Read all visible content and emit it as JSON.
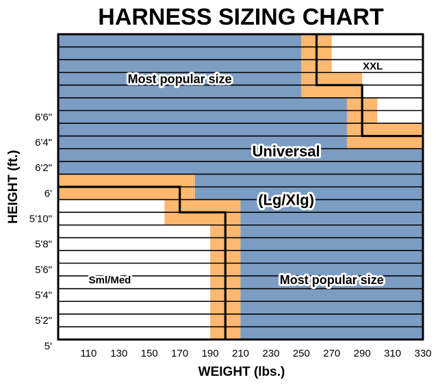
{
  "chart_data": {
    "type": "heatmap",
    "title": "HARNESS SIZING CHART",
    "xlabel": "WEIGHT (lbs.)",
    "ylabel": "HEIGHT (ft.)",
    "x_ticks": [
      "110",
      "130",
      "150",
      "170",
      "190",
      "210",
      "230",
      "250",
      "270",
      "290",
      "310",
      "330"
    ],
    "y_ticks": [
      "6'6\"",
      "6'4\"",
      "6'2\"",
      "6'",
      "5'10\"",
      "5'8\"",
      "5'6\"",
      "5'4\"",
      "5'2\"",
      "5'"
    ],
    "xlim": [
      90,
      330
    ],
    "ylim_inches": [
      59,
      83
    ],
    "row_height_inches": 1,
    "zones": [
      {
        "name": "Sml/Med",
        "color": "#ffffff",
        "rows_from_top": [
          {
            "rows": [
              13,
              14
            ],
            "weight_max": 160
          },
          {
            "rows": [
              15,
              23
            ],
            "weight_max": 190
          }
        ]
      },
      {
        "name": "Universal (Lg/Xlg)",
        "color": "#7b9dc4",
        "rows_from_top": [
          {
            "rows": [
              0,
              2
            ],
            "weight_max": 250
          },
          {
            "rows": [
              3,
              4
            ],
            "weight_max": 250
          },
          {
            "rows": [
              5,
              6
            ],
            "weight_max": 280
          },
          {
            "rows": [
              7,
              8
            ],
            "weight_max": 280
          },
          {
            "rows": [
              9,
              10
            ],
            "weight_max": 330
          },
          {
            "rows": [
              11,
              12
            ],
            "weight_min": 180,
            "weight_max": 330
          },
          {
            "rows": [
              13,
              14
            ],
            "weight_min": 210,
            "weight_max": 330
          },
          {
            "rows": [
              15,
              23
            ],
            "weight_min": 210,
            "weight_max": 330
          }
        ]
      },
      {
        "name": "XXL",
        "color": "#ffffff",
        "rows_from_top": [
          {
            "rows": [
              0,
              2
            ],
            "weight_min": 270
          },
          {
            "rows": [
              3,
              4
            ],
            "weight_min": 290
          },
          {
            "rows": [
              5,
              6
            ],
            "weight_min": 300
          }
        ]
      },
      {
        "name": "overlap",
        "color": "#ffb870",
        "rows_from_top": [
          {
            "rows": [
              0,
              2
            ],
            "weight_min": 250,
            "weight_max": 270
          },
          {
            "rows": [
              3,
              4
            ],
            "weight_min": 250,
            "weight_max": 290
          },
          {
            "rows": [
              5,
              6
            ],
            "weight_min": 280,
            "weight_max": 300
          },
          {
            "rows": [
              7,
              8
            ],
            "weight_min": 280,
            "weight_max": 330
          },
          {
            "rows": [
              11,
              12
            ],
            "weight_min": 90,
            "weight_max": 180
          },
          {
            "rows": [
              13,
              14
            ],
            "weight_min": 160,
            "weight_max": 210
          },
          {
            "rows": [
              15,
              23
            ],
            "weight_min": 190,
            "weight_max": 210
          }
        ]
      }
    ],
    "boundaries": [
      {
        "name": "upper",
        "points": [
          [
            260,
            83
          ],
          [
            260,
            79
          ],
          [
            290,
            79
          ],
          [
            290,
            75
          ],
          [
            330,
            75
          ]
        ]
      },
      {
        "name": "lower",
        "points": [
          [
            90,
            71
          ],
          [
            170,
            71
          ],
          [
            170,
            69
          ],
          [
            200,
            69
          ],
          [
            200,
            59
          ]
        ]
      }
    ],
    "annotations": [
      {
        "text": "XXL",
        "x": 297,
        "y": 80.5
      },
      {
        "text": "Most popular size",
        "x": 170,
        "y": 79.5
      },
      {
        "text": "Universal",
        "x": 240,
        "y": 73.8
      },
      {
        "text": "(Lg/Xlg)",
        "x": 240,
        "y": 70.0
      },
      {
        "text": "Sml/Med",
        "x": 124,
        "y": 63.7
      },
      {
        "text": "Most popular size",
        "x": 270,
        "y": 63.7
      }
    ],
    "grid": true,
    "legend": "none"
  },
  "colors": {
    "blue": "#7b9dc4",
    "orange": "#ffb870",
    "white": "#ffffff",
    "ink": "#000000"
  }
}
